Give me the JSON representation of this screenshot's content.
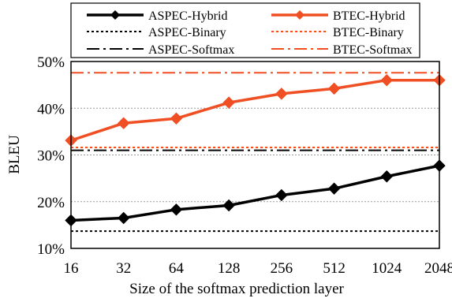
{
  "chart_data": {
    "type": "line",
    "title": "",
    "xlabel": "Size of the softmax prediction layer",
    "ylabel": "BLEU",
    "categories": [
      "16",
      "32",
      "64",
      "128",
      "256",
      "512",
      "1024",
      "2048"
    ],
    "yticks": [
      "10%",
      "20%",
      "30%",
      "40%",
      "50%"
    ],
    "ylim": [
      10,
      50
    ],
    "grid": "horizontal-dotted",
    "legend_position": "top",
    "series": [
      {
        "name": "ASPEC-Hybrid",
        "style": "solid-diamond",
        "color": "#000000",
        "values": [
          16.0,
          16.5,
          18.3,
          19.2,
          21.4,
          22.8,
          25.4,
          27.7
        ]
      },
      {
        "name": "BTEC-Hybrid",
        "style": "solid-diamond",
        "color": "#f04e23",
        "values": [
          33.1,
          36.8,
          37.8,
          41.2,
          43.1,
          44.2,
          46.0,
          46.0
        ]
      },
      {
        "name": "ASPEC-Binary",
        "style": "dotted",
        "color": "#000000",
        "values": [
          13.7,
          13.7,
          13.7,
          13.7,
          13.7,
          13.7,
          13.7,
          13.7
        ]
      },
      {
        "name": "BTEC-Binary",
        "style": "dotted",
        "color": "#f04e23",
        "values": [
          31.6,
          31.6,
          31.6,
          31.6,
          31.6,
          31.6,
          31.6,
          31.6
        ]
      },
      {
        "name": "ASPEC-Softmax",
        "style": "dash-dot",
        "color": "#000000",
        "values": [
          31.0,
          31.0,
          31.0,
          31.0,
          31.0,
          31.0,
          31.0,
          31.0
        ]
      },
      {
        "name": "BTEC-Softmax",
        "style": "dash-dot",
        "color": "#f04e23",
        "values": [
          47.6,
          47.6,
          47.6,
          47.6,
          47.6,
          47.6,
          47.6,
          47.6
        ]
      }
    ]
  }
}
